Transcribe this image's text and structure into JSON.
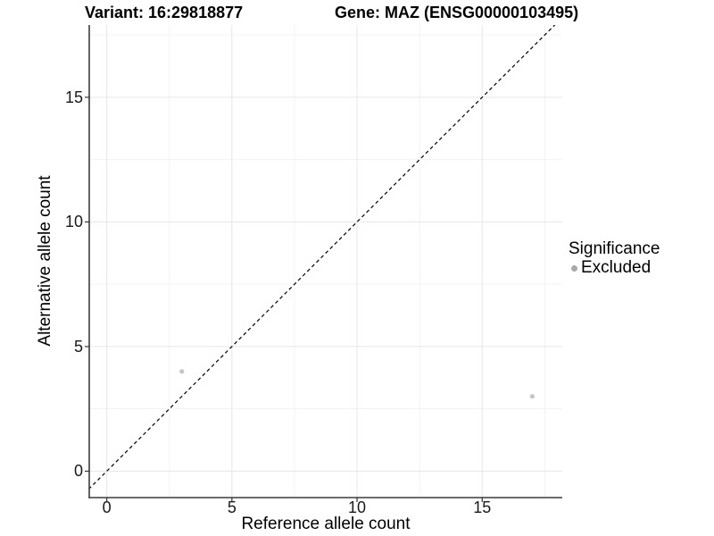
{
  "header": {
    "variant_title": "Variant: 16:29818877",
    "gene_title": "Gene: MAZ (ENSG00000103495)"
  },
  "chart_data": {
    "type": "scatter",
    "title": "Variant: 16:29818877    Gene: MAZ (ENSG00000103495)",
    "xlabel": "Reference allele count",
    "ylabel": "Alternative allele count",
    "xlim": [
      -0.7,
      18.2
    ],
    "ylim": [
      -1.06,
      17.9
    ],
    "x_ticks": [
      0,
      5,
      10,
      15
    ],
    "y_ticks": [
      0,
      5,
      10,
      15
    ],
    "x_minor_ticks": [
      2.5,
      7.5,
      12.5,
      17.5
    ],
    "y_minor_ticks": [
      2.5,
      7.5,
      12.5,
      17.5
    ],
    "grid": "major+minor",
    "identity_line": {
      "equation": "y = x",
      "style": "dashed",
      "color": "#000000"
    },
    "series": [
      {
        "name": "Excluded",
        "marker": "circle",
        "color": "#c5c5c5",
        "points": [
          [
            3,
            4
          ],
          [
            17,
            3
          ]
        ]
      }
    ],
    "legend": {
      "title": "Significance",
      "position": "right",
      "entries": [
        {
          "label": "Excluded",
          "color": "#a9a9a9"
        }
      ]
    }
  },
  "colors": {
    "grid_major": "#e6e6e6",
    "grid_minor": "#f3f3f3",
    "axis_line": "#3c3c3c",
    "tick_mark": "#333333"
  }
}
